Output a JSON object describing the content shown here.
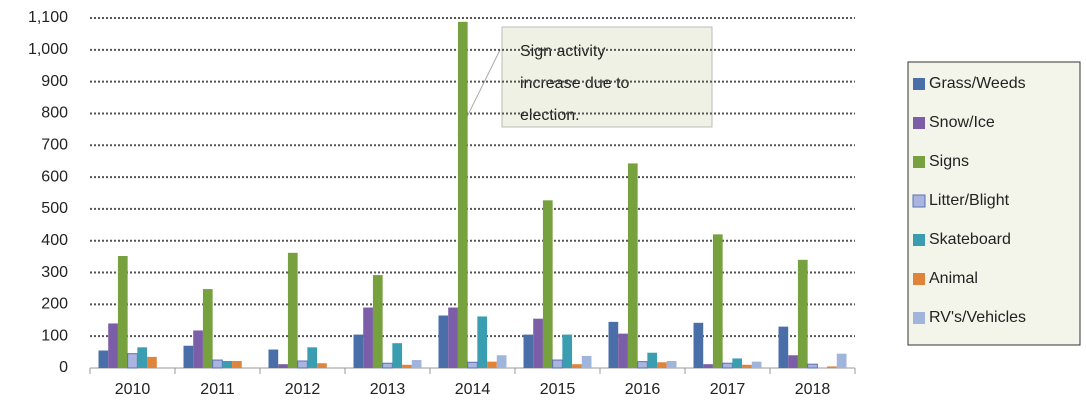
{
  "chart_data": {
    "type": "bar",
    "categories": [
      "2010",
      "2011",
      "2012",
      "2013",
      "2014",
      "2015",
      "2016",
      "2017",
      "2018"
    ],
    "series": [
      {
        "name": "Grass/Weeds",
        "color": "#4a6fa8",
        "values": [
          55,
          70,
          58,
          105,
          165,
          105,
          145,
          142,
          130
        ]
      },
      {
        "name": "Snow/Ice",
        "color": "#7b5ea7",
        "values": [
          140,
          118,
          12,
          190,
          190,
          155,
          108,
          12,
          40
        ]
      },
      {
        "name": "Signs",
        "color": "#77a03f",
        "values": [
          352,
          248,
          362,
          292,
          1088,
          527,
          643,
          420,
          340
        ]
      },
      {
        "name": "Litter/Blight",
        "color": "#a9b5de",
        "values": [
          45,
          25,
          22,
          15,
          18,
          25,
          20,
          15,
          12
        ]
      },
      {
        "name": "Skateboard",
        "color": "#3a9eb0",
        "values": [
          65,
          22,
          65,
          78,
          162,
          105,
          48,
          30,
          0
        ]
      },
      {
        "name": "Animal",
        "color": "#e0843c",
        "values": [
          35,
          22,
          15,
          10,
          20,
          12,
          18,
          10,
          5
        ]
      },
      {
        "name": "RV's/Vehicles",
        "color": "#9fb5dc",
        "values": [
          0,
          0,
          0,
          25,
          40,
          38,
          22,
          20,
          45
        ]
      }
    ],
    "ylim": [
      0,
      1100
    ],
    "yticks": [
      0,
      100,
      200,
      300,
      400,
      500,
      600,
      700,
      800,
      900,
      {
        "value": 1000,
        "label": "1,000"
      },
      {
        "value": 1100,
        "label": "1,100"
      }
    ],
    "grid": true,
    "legend": "right",
    "annotation": {
      "lines": [
        "Sign activity",
        "increase due to",
        "election."
      ]
    }
  }
}
